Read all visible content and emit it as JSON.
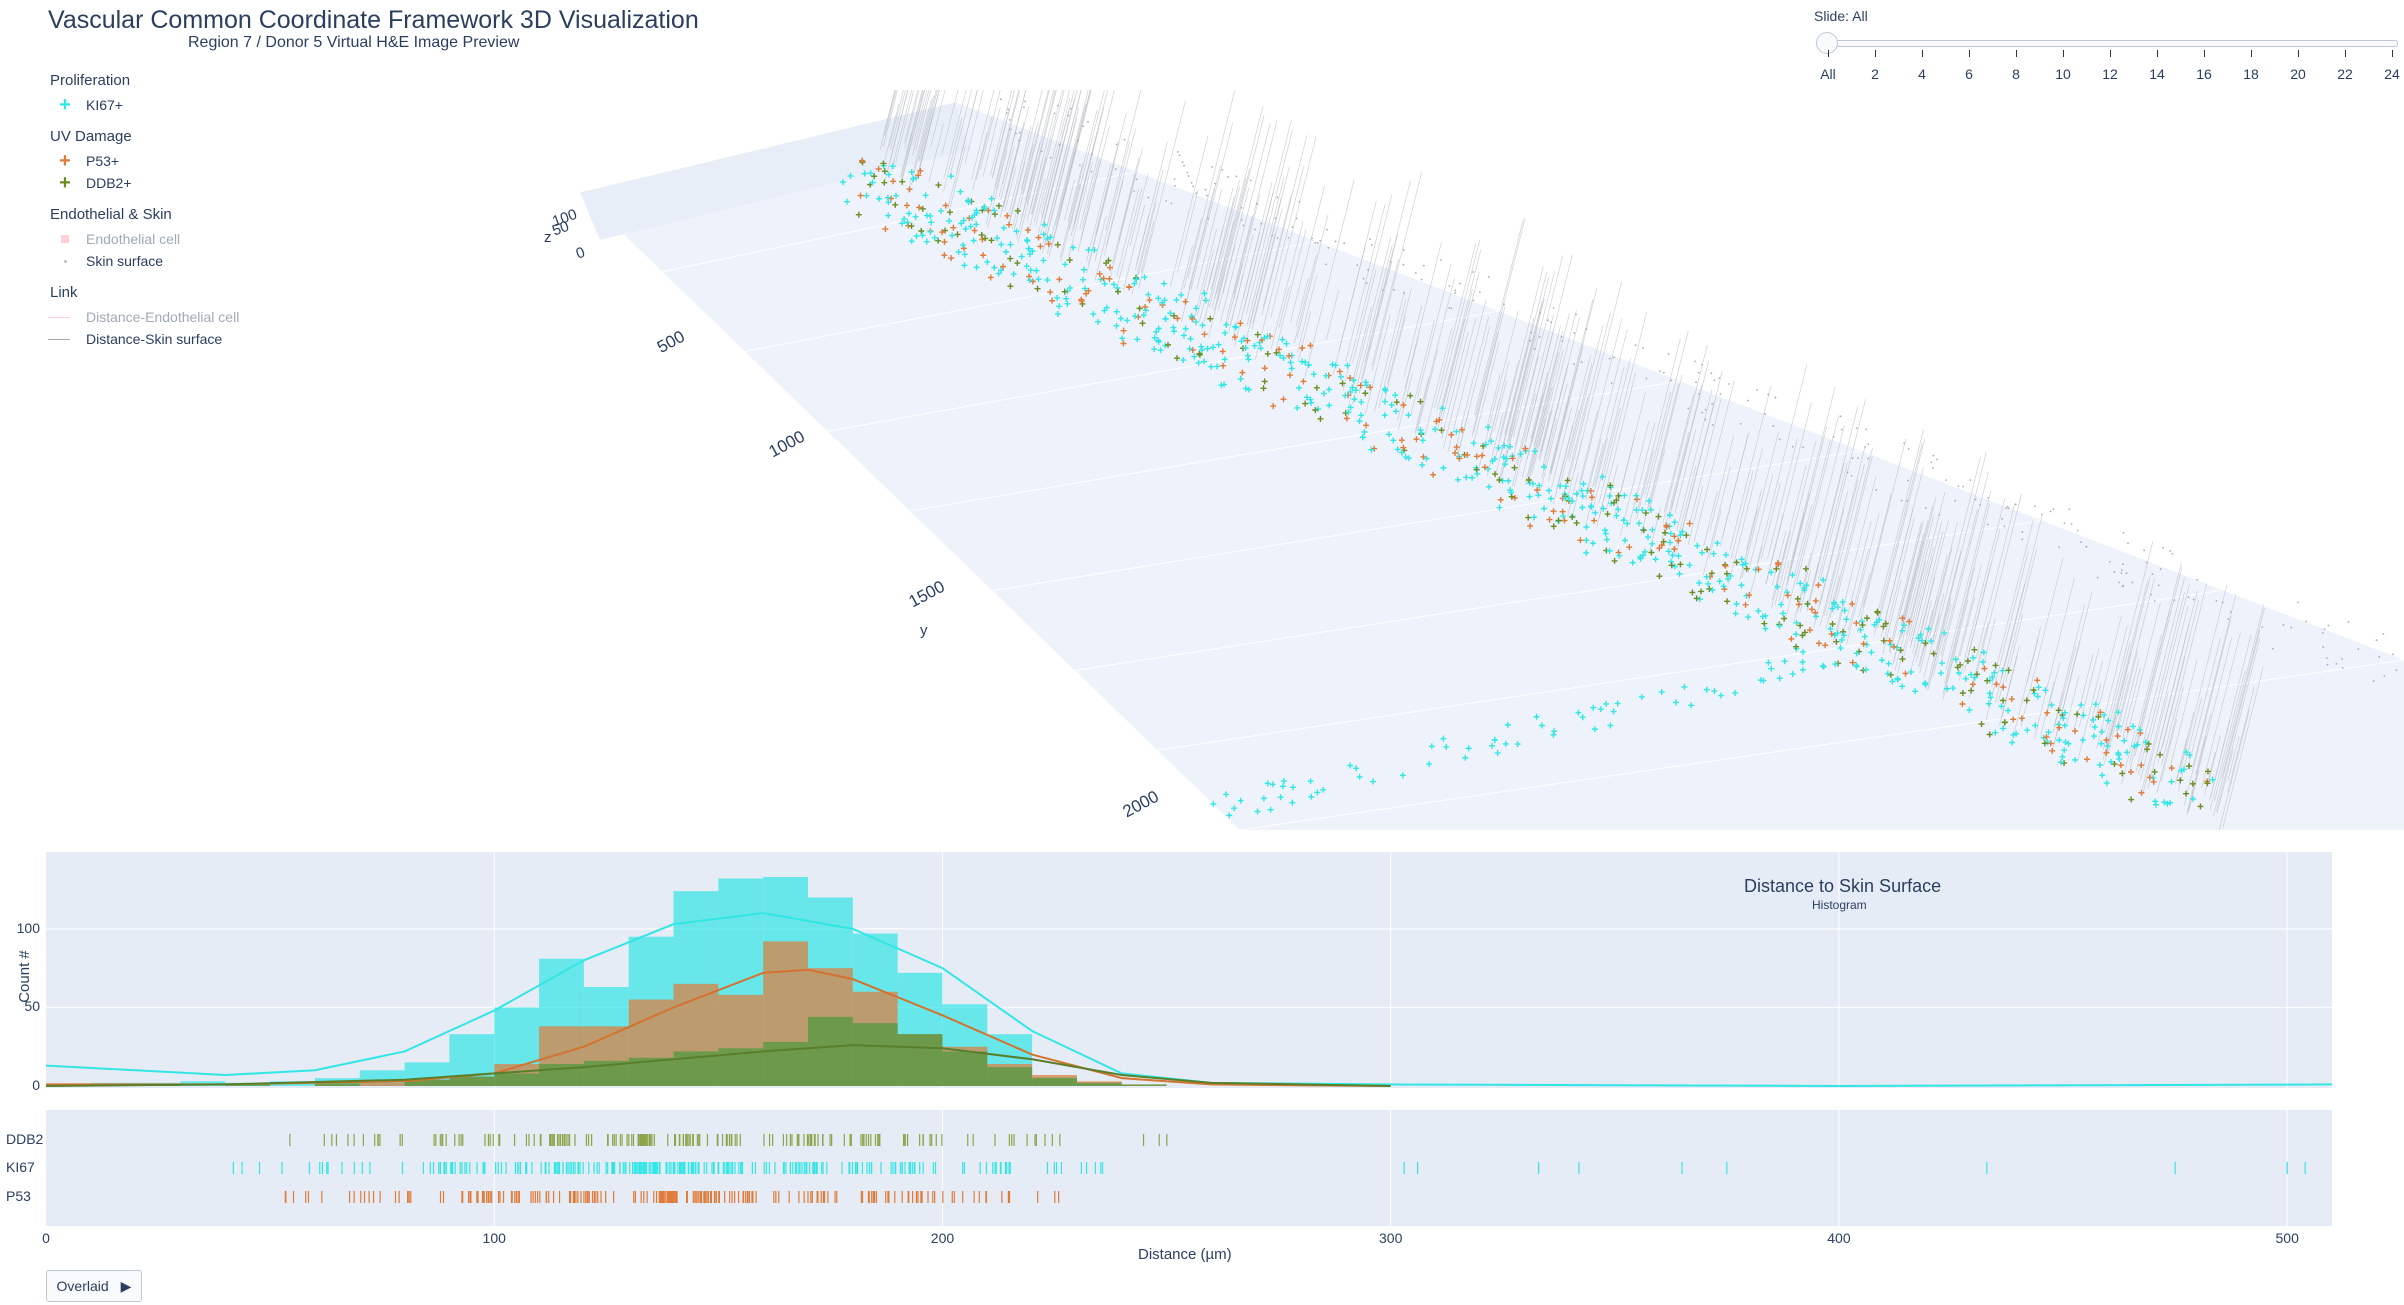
{
  "header": {
    "title": "Vascular Common Coordinate Framework 3D Visualization",
    "subtitle": "Region 7 / Donor 5  Virtual H&E Image Preview"
  },
  "legend": {
    "groups": [
      {
        "title": "Proliferation",
        "items": [
          {
            "label": "KI67+",
            "symbol": "cross",
            "color": "#33e6e6"
          }
        ]
      },
      {
        "title": "UV Damage",
        "items": [
          {
            "label": "P53+",
            "symbol": "cross",
            "color": "#e07b39"
          },
          {
            "label": "DDB2+",
            "symbol": "cross",
            "color": "#6b8e23"
          }
        ]
      },
      {
        "title": "Endothelial & Skin",
        "items": [
          {
            "label": "Endothelial cell",
            "symbol": "square",
            "color": "#ff9aa2",
            "muted": true
          },
          {
            "label": "Skin surface",
            "symbol": "dot",
            "color": "#c0c0c0"
          }
        ]
      },
      {
        "title": "Link",
        "items": [
          {
            "label": "Distance-Endothelial cell",
            "symbol": "line",
            "color": "#ff9aa2",
            "muted": true
          },
          {
            "label": "Distance-Skin surface",
            "symbol": "line",
            "color": "#a9a9a9"
          }
        ]
      }
    ]
  },
  "slider": {
    "label": "Slide: All",
    "ticks": [
      "All",
      "2",
      "4",
      "6",
      "8",
      "10",
      "12",
      "14",
      "16",
      "18",
      "20",
      "22",
      "24"
    ],
    "selected_index": 0
  },
  "scene": {
    "z_axis_label": "z",
    "z_ticks": [
      "100",
      "50",
      "0"
    ],
    "y_axis_label": "y",
    "y_ticks": [
      "500",
      "1000",
      "1500",
      "2000"
    ],
    "background": "#eef3fb"
  },
  "histogram": {
    "title": "Distance to Skin Surface",
    "subtitle": "Histogram",
    "ylabel": "Count #",
    "xlabel": "Distance (µm)",
    "y_ticks": [
      "100",
      "50",
      "0"
    ],
    "x_ticks": [
      "0",
      "100",
      "200",
      "300",
      "400",
      "500"
    ],
    "rug_labels": [
      "DDB2",
      "KI67",
      "P53"
    ]
  },
  "chart_data": {
    "type": "bar",
    "title": "Distance to Skin Surface",
    "subtitle": "Histogram",
    "xlabel": "Distance (µm)",
    "ylabel": "Count #",
    "xlim": [
      0,
      510
    ],
    "ylim": [
      0,
      140
    ],
    "bin_width": 10,
    "series": [
      {
        "name": "KI67",
        "color": "#33e6e6",
        "bin_starts": [
          0,
          10,
          20,
          30,
          40,
          50,
          60,
          70,
          80,
          90,
          100,
          110,
          120,
          130,
          140,
          150,
          160,
          170,
          180,
          190,
          200,
          210,
          220,
          230
        ],
        "values": [
          1,
          2,
          2,
          3,
          2,
          3,
          5,
          10,
          15,
          33,
          50,
          81,
          63,
          95,
          124,
          132,
          133,
          120,
          97,
          72,
          52,
          33,
          6,
          2
        ]
      },
      {
        "name": "P53",
        "color": "#e07b39",
        "bin_starts": [
          60,
          70,
          80,
          90,
          100,
          110,
          120,
          130,
          140,
          150,
          160,
          170,
          180,
          190,
          200,
          210,
          220,
          230,
          240
        ],
        "values": [
          1,
          2,
          4,
          6,
          14,
          38,
          38,
          55,
          65,
          58,
          92,
          75,
          60,
          33,
          25,
          14,
          7,
          3,
          1
        ]
      },
      {
        "name": "DDB2",
        "color": "#4a9a3a",
        "bin_starts": [
          20,
          40,
          60,
          80,
          90,
          100,
          110,
          120,
          130,
          140,
          150,
          160,
          170,
          180,
          190,
          200,
          210,
          220,
          230,
          240
        ],
        "values": [
          1,
          1,
          2,
          4,
          6,
          8,
          14,
          16,
          18,
          22,
          24,
          28,
          44,
          40,
          33,
          22,
          12,
          5,
          2,
          1
        ]
      }
    ],
    "kde": [
      {
        "name": "KI67",
        "color": "#33e6e6",
        "x": [
          0,
          20,
          40,
          60,
          80,
          100,
          120,
          140,
          160,
          180,
          200,
          220,
          240,
          260,
          300,
          400,
          510
        ],
        "y": [
          13,
          10,
          7,
          10,
          22,
          48,
          80,
          103,
          110,
          100,
          75,
          35,
          8,
          2,
          1,
          0,
          1
        ]
      },
      {
        "name": "P53",
        "color": "#d2732f",
        "x": [
          0,
          40,
          80,
          100,
          120,
          140,
          160,
          170,
          180,
          200,
          220,
          240,
          260,
          300
        ],
        "y": [
          1,
          1,
          3,
          8,
          25,
          50,
          72,
          74,
          68,
          45,
          20,
          5,
          1,
          0
        ]
      },
      {
        "name": "DDB2",
        "color": "#5a7f2a",
        "x": [
          0,
          40,
          80,
          100,
          120,
          140,
          160,
          180,
          200,
          220,
          240,
          260,
          300
        ],
        "y": [
          0,
          1,
          4,
          8,
          12,
          17,
          22,
          26,
          24,
          17,
          7,
          2,
          0
        ]
      }
    ],
    "rug": [
      {
        "name": "DDB2",
        "color": "#8da54a"
      },
      {
        "name": "KI67",
        "color": "#33e6e6"
      },
      {
        "name": "P53",
        "color": "#e07b39"
      }
    ]
  },
  "controls": {
    "overlay_button": "Overlaid"
  }
}
